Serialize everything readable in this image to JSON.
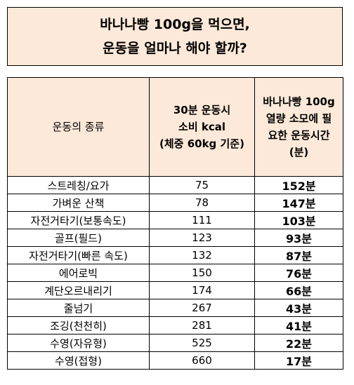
{
  "title": {
    "line1": "바나나빵 100g을 먹으면,",
    "line2": "운동을 얼마나 해야 할까?"
  },
  "table": {
    "headers": {
      "col1": "운동의 종류",
      "col2_lines": [
        "30분 운동시",
        "소비 kcal",
        "(체중 60kg 기준)"
      ],
      "col3_lines": [
        "바나나빵 100g",
        "열량 소모에 필",
        "요한 운동시간",
        "(분)"
      ]
    },
    "rows": [
      {
        "exercise": "스트레칭/요가",
        "kcal": "75",
        "minutes": "152분"
      },
      {
        "exercise": "가벼운 산책",
        "kcal": "78",
        "minutes": "147분"
      },
      {
        "exercise": "자전거타기(보통속도)",
        "kcal": "111",
        "minutes": "103분"
      },
      {
        "exercise": "골프(필드)",
        "kcal": "123",
        "minutes": "93분"
      },
      {
        "exercise": "자전거타기(빠른 속도)",
        "kcal": "132",
        "minutes": "87분"
      },
      {
        "exercise": "에어로빅",
        "kcal": "150",
        "minutes": "76분"
      },
      {
        "exercise": "계단오르내리기",
        "kcal": "174",
        "minutes": "66분"
      },
      {
        "exercise": "줄넘기",
        "kcal": "267",
        "minutes": "43분"
      },
      {
        "exercise": "조깅(천천히)",
        "kcal": "281",
        "minutes": "41분"
      },
      {
        "exercise": "수영(자유형)",
        "kcal": "525",
        "minutes": "22분"
      },
      {
        "exercise": "수영(접형)",
        "kcal": "660",
        "minutes": "17분"
      }
    ]
  },
  "colors": {
    "header_fill": "#fde9d9",
    "border": "#000000"
  }
}
